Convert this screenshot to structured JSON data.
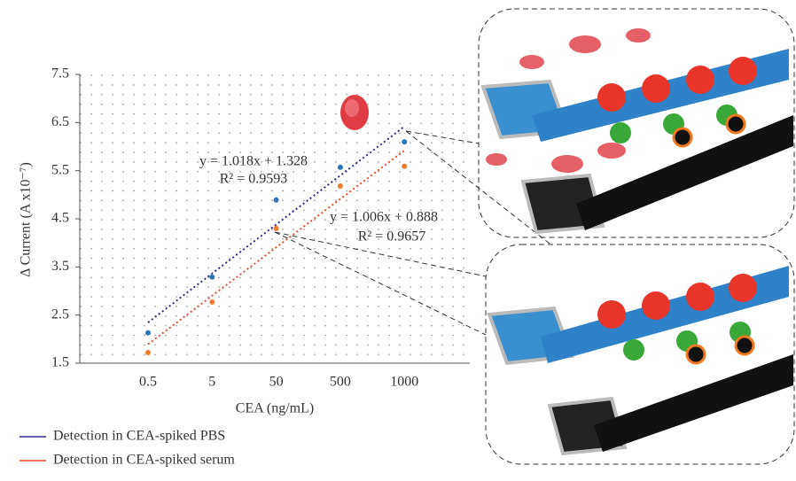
{
  "chart_data": {
    "type": "scatter",
    "x_label": "CEA (ng/mL)",
    "y_label": "Δ Current (A x10⁻⁷)",
    "categories": [
      "0.5",
      "5",
      "50",
      "500",
      "1000"
    ],
    "ylim": [
      1.5,
      7.5
    ],
    "yticks": [
      1.5,
      2.5,
      3.5,
      4.5,
      5.5,
      6.5,
      7.5
    ],
    "grid": true,
    "series": [
      {
        "name": "Detection in CEA-spiked PBS",
        "color": "#2e75b6",
        "line_color": "#2b2f8c",
        "values": [
          2.13,
          3.29,
          4.89,
          5.57,
          6.1
        ],
        "trendline": {
          "slope": 1.018,
          "intercept": 1.328
        },
        "equation": "y = 1.018x + 1.328",
        "r_squared": "R² = 0.9593"
      },
      {
        "name": "Detection in CEA-spiked serum",
        "color": "#ed7d31",
        "line_color": "#f04a24",
        "values": [
          1.72,
          2.77,
          4.3,
          5.18,
          5.59
        ],
        "trendline": {
          "slope": 1.006,
          "intercept": 0.888
        },
        "equation": "y = 1.006x + 0.888",
        "r_squared": "R² = 0.9657"
      }
    ]
  }
}
